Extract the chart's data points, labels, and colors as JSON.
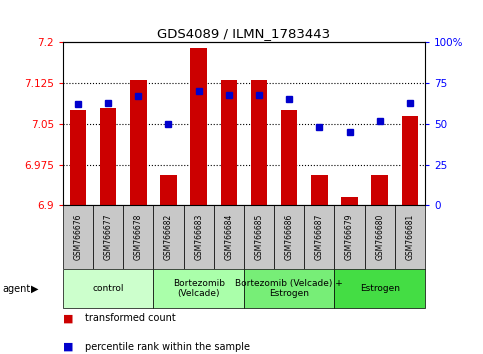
{
  "title": "GDS4089 / ILMN_1783443",
  "samples": [
    "GSM766676",
    "GSM766677",
    "GSM766678",
    "GSM766682",
    "GSM766683",
    "GSM766684",
    "GSM766685",
    "GSM766686",
    "GSM766687",
    "GSM766679",
    "GSM766680",
    "GSM766681"
  ],
  "red_values": [
    7.075,
    7.08,
    7.13,
    6.955,
    7.19,
    7.13,
    7.13,
    7.075,
    6.955,
    6.915,
    6.955,
    7.065
  ],
  "blue_values": [
    62,
    63,
    67,
    50,
    70,
    68,
    68,
    65,
    48,
    45,
    52,
    63
  ],
  "y_min": 6.9,
  "y_max": 7.2,
  "y_ticks_left": [
    6.9,
    6.975,
    7.05,
    7.125,
    7.2
  ],
  "y_ticks_right": [
    0,
    25,
    50,
    75,
    100
  ],
  "groups": [
    {
      "label": "control",
      "span": [
        0,
        3
      ],
      "color": "#ccffcc"
    },
    {
      "label": "Bortezomib\n(Velcade)",
      "span": [
        3,
        6
      ],
      "color": "#aaffaa"
    },
    {
      "label": "Bortezomib (Velcade) +\nEstrogen",
      "span": [
        6,
        9
      ],
      "color": "#77ee77"
    },
    {
      "label": "Estrogen",
      "span": [
        9,
        12
      ],
      "color": "#44dd44"
    }
  ],
  "bar_color": "#cc0000",
  "dot_color": "#0000cc",
  "background_sample": "#c8c8c8",
  "legend_red": "transformed count",
  "legend_blue": "percentile rank within the sample",
  "agent_label": "agent"
}
